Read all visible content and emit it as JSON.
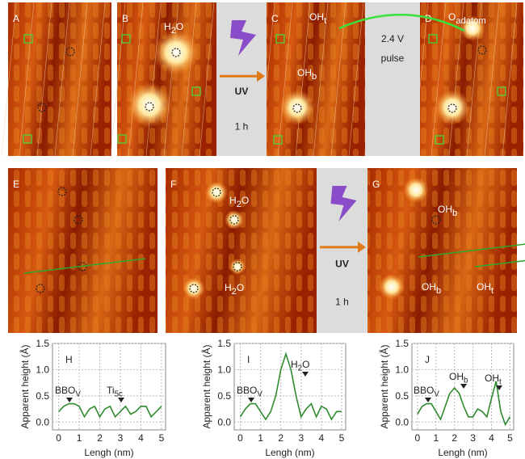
{
  "panels": [
    {
      "label": "A",
      "notes": []
    },
    {
      "label": "B",
      "notes": [
        {
          "text": "H",
          "sub": "2",
          "after": "O"
        }
      ]
    },
    {
      "label": "C",
      "notes": [
        {
          "text": "OH",
          "sub": "t"
        },
        {
          "text": "OH",
          "sub": "b"
        }
      ]
    },
    {
      "label": "D",
      "notes": [
        {
          "text": "O",
          "sub": "adatom"
        }
      ]
    },
    {
      "label": "E",
      "notes": []
    },
    {
      "label": "F",
      "notes": [
        {
          "text": "H",
          "sub": "2",
          "after": "O"
        },
        {
          "text": "H",
          "sub": "2",
          "after": "O"
        }
      ]
    },
    {
      "label": "G",
      "notes": [
        {
          "text": "OH",
          "sub": "b"
        },
        {
          "text": "OH",
          "sub": "b"
        },
        {
          "text": "OH",
          "sub": "t"
        }
      ]
    }
  ],
  "steps": [
    {
      "lines": [
        "UV",
        "1 h"
      ]
    },
    {
      "lines": [
        "2.4 V",
        "pulse"
      ]
    },
    {
      "lines": [
        "UV",
        "1 h"
      ]
    }
  ],
  "chart_data": [
    {
      "type": "line",
      "panel": "H",
      "xlabel": "Lengh (nm)",
      "ylabel": "Apparent height (Å)",
      "x": [
        0,
        0.25,
        0.5,
        0.75,
        1,
        1.25,
        1.5,
        1.75,
        2,
        2.25,
        2.5,
        2.75,
        3,
        3.25,
        3.5,
        3.75,
        4,
        4.25,
        4.5,
        4.75,
        5
      ],
      "series": [
        {
          "color": "#2e8b2e",
          "values": [
            0.2,
            0.3,
            0.35,
            0.35,
            0.3,
            0.1,
            0.25,
            0.3,
            0.1,
            0.25,
            0.3,
            0.1,
            0.2,
            0.3,
            0.15,
            0.2,
            0.3,
            0.3,
            0.1,
            0.2,
            0.3
          ]
        }
      ],
      "xlim": [
        -0.3,
        5.2
      ],
      "xticks": [
        0,
        1,
        2,
        3,
        4,
        5
      ],
      "ylim": [
        -0.15,
        1.5
      ],
      "yticks": [
        {
          "value": 0,
          "label": "0.0"
        },
        {
          "value": 0.5,
          "label": "0.5"
        },
        {
          "value": 1,
          "label": "1.0"
        },
        {
          "value": 1.5,
          "label": "1.5"
        }
      ],
      "grid": true,
      "annotations": [
        {
          "text": "BBO",
          "sub": "V"
        },
        {
          "text": "Ti",
          "sub": "5c"
        }
      ]
    },
    {
      "type": "line",
      "panel": "I",
      "xlabel": "Lengh (nm)",
      "ylabel": "Apparent height (Å)",
      "x": [
        0,
        0.25,
        0.5,
        0.75,
        1,
        1.25,
        1.5,
        1.75,
        2,
        2.25,
        2.5,
        2.75,
        3,
        3.25,
        3.5,
        3.75,
        4,
        4.25,
        4.5,
        4.75,
        5
      ],
      "series": [
        {
          "color": "#2e8b2e",
          "values": [
            0.1,
            0.25,
            0.35,
            0.35,
            0.2,
            0.05,
            0.2,
            0.5,
            1.0,
            1.3,
            1.0,
            0.5,
            0.1,
            0.25,
            0.35,
            0.1,
            0.3,
            0.25,
            0.05,
            0.2,
            0.2
          ]
        }
      ],
      "xlim": [
        -0.3,
        5.2
      ],
      "xticks": [
        0,
        1,
        2,
        3,
        4,
        5
      ],
      "ylim": [
        -0.15,
        1.5
      ],
      "yticks": [
        {
          "value": 0,
          "label": "0.0"
        },
        {
          "value": 0.5,
          "label": "0.5"
        },
        {
          "value": 1,
          "label": "1.0"
        },
        {
          "value": 1.5,
          "label": "1.5"
        }
      ],
      "grid": true,
      "annotations": [
        {
          "text": "BBO",
          "sub": "V"
        },
        {
          "text": "H",
          "sub": "2",
          "after": "O"
        }
      ]
    },
    {
      "type": "line",
      "panel": "J",
      "xlabel": "Lengh (nm)",
      "ylabel": "Apparent height (Å)",
      "x": [
        0,
        0.25,
        0.5,
        0.75,
        1,
        1.25,
        1.5,
        1.75,
        2,
        2.25,
        2.5,
        2.75,
        3,
        3.25,
        3.5,
        3.75,
        4,
        4.25,
        4.5,
        4.75,
        5
      ],
      "series": [
        {
          "color": "#2e8b2e",
          "values": [
            0.15,
            0.3,
            0.35,
            0.35,
            0.2,
            0.05,
            0.3,
            0.55,
            0.65,
            0.55,
            0.3,
            0.1,
            0.1,
            0.25,
            0.2,
            0.1,
            0.45,
            0.78,
            0.2,
            -0.05,
            0.1
          ]
        }
      ],
      "xlim": [
        -0.3,
        5.2
      ],
      "xticks": [
        0,
        1,
        2,
        3,
        4,
        5
      ],
      "ylim": [
        -0.15,
        1.5
      ],
      "yticks": [
        {
          "value": 0,
          "label": "0.0"
        },
        {
          "value": 0.5,
          "label": "0.5"
        },
        {
          "value": 1,
          "label": "1.0"
        },
        {
          "value": 1.5,
          "label": "1.5"
        }
      ],
      "grid": true,
      "annotations": [
        {
          "text": "BBO",
          "sub": "V"
        },
        {
          "text": "OH",
          "sub": "b"
        },
        {
          "text": "OH",
          "sub": "t"
        }
      ]
    }
  ]
}
